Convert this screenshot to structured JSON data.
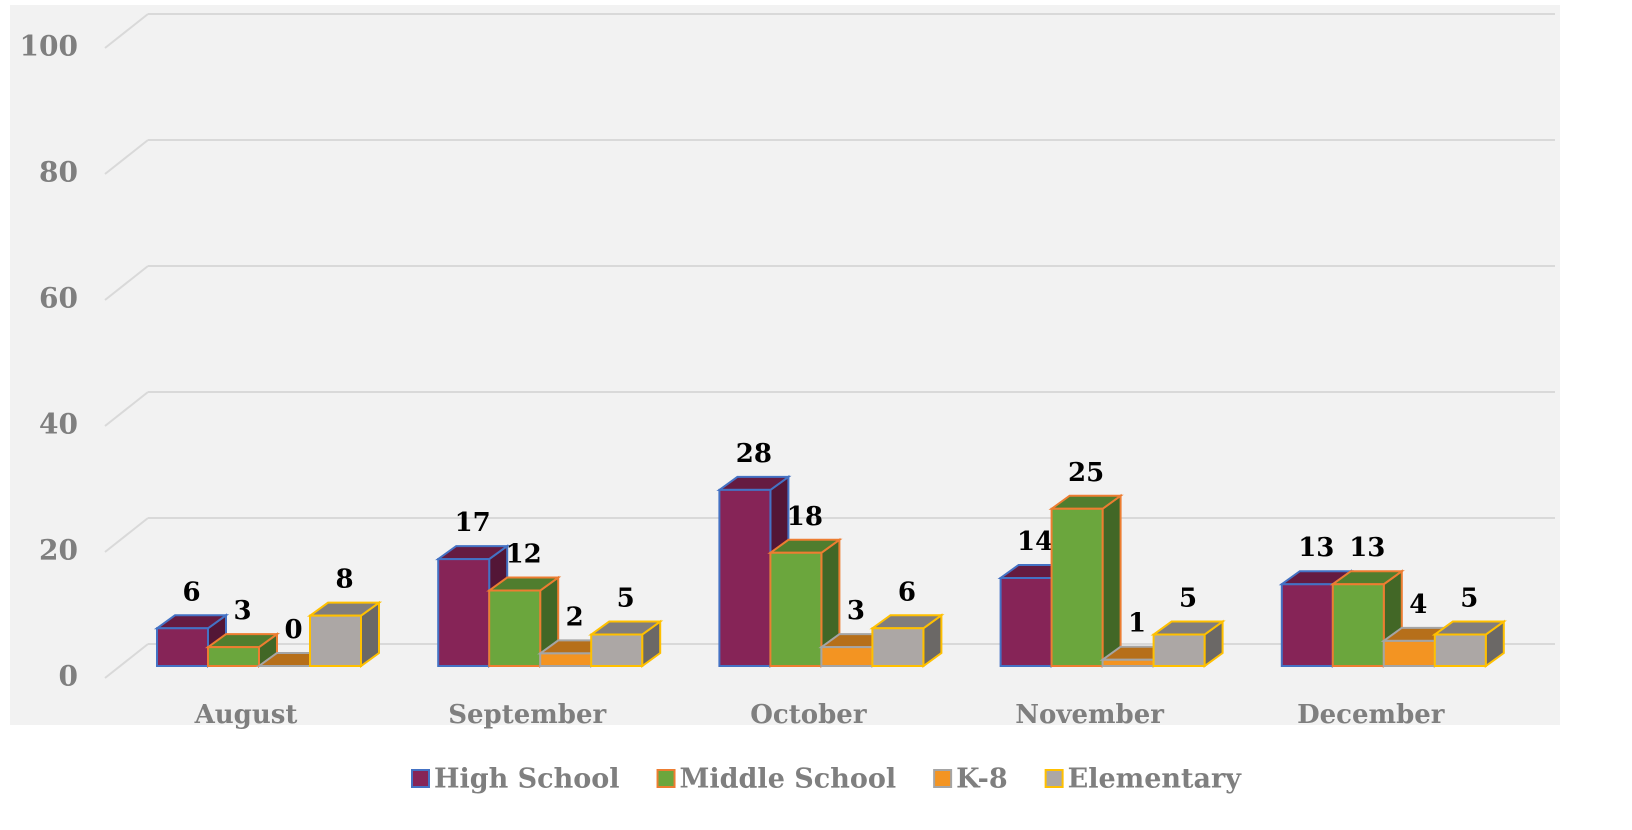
{
  "chart_data": {
    "type": "bar3d",
    "categories": [
      "August",
      "September",
      "October",
      "November",
      "December"
    ],
    "series": [
      {
        "name": "High School",
        "color": "#862457",
        "edgecolor": "#4472c4",
        "values": [
          6,
          17,
          28,
          14,
          13
        ]
      },
      {
        "name": "Middle School",
        "color": "#6ba63d",
        "edgecolor": "#ed7d31",
        "values": [
          3,
          12,
          18,
          25,
          13
        ]
      },
      {
        "name": "K-8",
        "color": "#f39422",
        "edgecolor": "#a5a5a5",
        "values": [
          0,
          2,
          3,
          1,
          4
        ]
      },
      {
        "name": "Elementary",
        "color": "#aca7a5",
        "edgecolor": "#ffc000",
        "values": [
          8,
          5,
          6,
          5,
          5
        ]
      }
    ],
    "ylim": [
      0,
      100
    ],
    "yticks": [
      0,
      20,
      40,
      60,
      80,
      100
    ],
    "grid": true,
    "legend": "bottom"
  }
}
